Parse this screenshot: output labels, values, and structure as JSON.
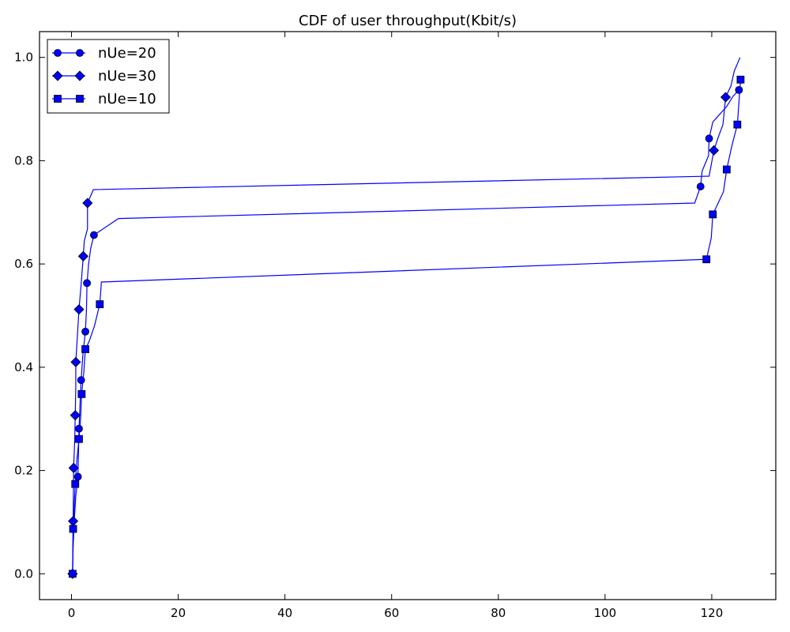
{
  "chart_data": {
    "type": "line",
    "title": "CDF of user throughput(Kbit/s)",
    "xlabel": "",
    "ylabel": "",
    "xlim": [
      -6,
      132
    ],
    "ylim": [
      -0.05,
      1.05
    ],
    "xticks": [
      0,
      20,
      40,
      60,
      80,
      100,
      120
    ],
    "yticks": [
      0.0,
      0.2,
      0.4,
      0.6,
      0.8,
      1.0
    ],
    "xtick_labels": [
      "0",
      "20",
      "40",
      "60",
      "80",
      "100",
      "120"
    ],
    "ytick_labels": [
      "0.0",
      "0.2",
      "0.4",
      "0.6",
      "0.8",
      "1.0"
    ],
    "grid": false,
    "legend_position": "top-left",
    "line_color": "#0000ff",
    "series": [
      {
        "name": "nUe=20",
        "marker": "circle",
        "line": [
          [
            0.2,
            0.0
          ],
          [
            0.3,
            0.05
          ],
          [
            0.5,
            0.1
          ],
          [
            0.8,
            0.15
          ],
          [
            1.2,
            0.19
          ],
          [
            1.3,
            0.23
          ],
          [
            1.4,
            0.28
          ],
          [
            1.6,
            0.33
          ],
          [
            1.8,
            0.375
          ],
          [
            2.1,
            0.42
          ],
          [
            2.6,
            0.47
          ],
          [
            2.8,
            0.51
          ],
          [
            2.9,
            0.56
          ],
          [
            3.2,
            0.6
          ],
          [
            3.6,
            0.63
          ],
          [
            4.2,
            0.656
          ],
          [
            8.8,
            0.688
          ],
          [
            116.8,
            0.718
          ],
          [
            117.9,
            0.75
          ],
          [
            118.2,
            0.78
          ],
          [
            119.4,
            0.81
          ],
          [
            119.5,
            0.843
          ],
          [
            120.2,
            0.875
          ],
          [
            121.5,
            0.89
          ],
          [
            122.8,
            0.905
          ],
          [
            124.0,
            0.925
          ],
          [
            125.1,
            0.937
          ]
        ],
        "markers": [
          [
            0.2,
            0.0
          ],
          [
            1.2,
            0.188
          ],
          [
            1.4,
            0.281
          ],
          [
            1.8,
            0.375
          ],
          [
            2.6,
            0.469
          ],
          [
            2.9,
            0.563
          ],
          [
            4.2,
            0.656
          ],
          [
            117.9,
            0.75
          ],
          [
            119.5,
            0.843
          ],
          [
            125.1,
            0.937
          ]
        ]
      },
      {
        "name": "nUe=30",
        "marker": "diamond",
        "line": [
          [
            0.2,
            0.0
          ],
          [
            0.3,
            0.1
          ],
          [
            0.4,
            0.205
          ],
          [
            0.6,
            0.26
          ],
          [
            0.7,
            0.307
          ],
          [
            0.8,
            0.36
          ],
          [
            0.8,
            0.41
          ],
          [
            1.1,
            0.46
          ],
          [
            1.4,
            0.512
          ],
          [
            1.8,
            0.56
          ],
          [
            2.2,
            0.615
          ],
          [
            2.4,
            0.645
          ],
          [
            3.0,
            0.668
          ],
          [
            3.0,
            0.718
          ],
          [
            4.1,
            0.744
          ],
          [
            119.5,
            0.77
          ],
          [
            120.4,
            0.82
          ],
          [
            121.2,
            0.845
          ],
          [
            122.1,
            0.87
          ],
          [
            122.6,
            0.923
          ],
          [
            123.6,
            0.945
          ],
          [
            124.2,
            0.973
          ],
          [
            125.3,
            1.0
          ]
        ],
        "markers": [
          [
            0.2,
            0.0
          ],
          [
            0.3,
            0.102
          ],
          [
            0.4,
            0.205
          ],
          [
            0.7,
            0.307
          ],
          [
            0.8,
            0.41
          ],
          [
            1.4,
            0.512
          ],
          [
            2.2,
            0.615
          ],
          [
            3.0,
            0.718
          ],
          [
            120.4,
            0.82
          ],
          [
            122.6,
            0.923
          ]
        ]
      },
      {
        "name": "nUe=10",
        "marker": "square",
        "line": [
          [
            0.2,
            0.0
          ],
          [
            0.3,
            0.087
          ],
          [
            0.7,
            0.174
          ],
          [
            1.0,
            0.22
          ],
          [
            1.4,
            0.261
          ],
          [
            1.7,
            0.3
          ],
          [
            1.9,
            0.348
          ],
          [
            2.3,
            0.39
          ],
          [
            2.6,
            0.435
          ],
          [
            3.3,
            0.45
          ],
          [
            4.3,
            0.48
          ],
          [
            5.3,
            0.522
          ],
          [
            5.6,
            0.565
          ],
          [
            119.0,
            0.609
          ],
          [
            119.9,
            0.65
          ],
          [
            120.2,
            0.696
          ],
          [
            122.2,
            0.74
          ],
          [
            122.8,
            0.783
          ],
          [
            123.8,
            0.83
          ],
          [
            124.8,
            0.87
          ],
          [
            125.4,
            0.957
          ]
        ],
        "markers": [
          [
            0.2,
            0.0
          ],
          [
            0.3,
            0.087
          ],
          [
            0.7,
            0.174
          ],
          [
            1.4,
            0.261
          ],
          [
            1.9,
            0.348
          ],
          [
            2.6,
            0.435
          ],
          [
            5.3,
            0.522
          ],
          [
            119.0,
            0.609
          ],
          [
            120.2,
            0.696
          ],
          [
            122.8,
            0.783
          ],
          [
            124.8,
            0.87
          ],
          [
            125.4,
            0.957
          ]
        ]
      }
    ]
  }
}
